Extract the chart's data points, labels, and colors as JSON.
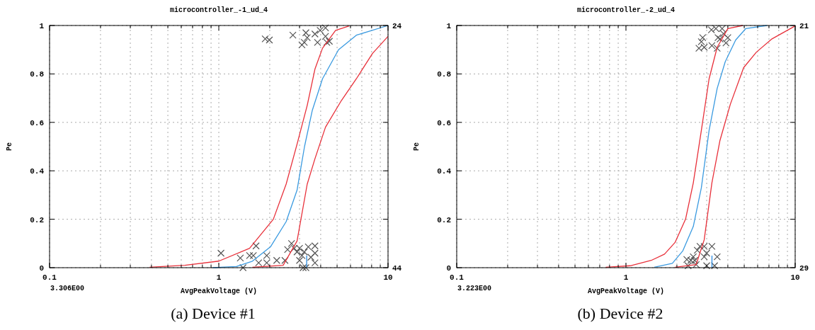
{
  "chart_data": [
    {
      "type": "line",
      "title": "microcontroller_-1_ud_4",
      "xlabel": "AvgPeakVoltage (V)",
      "ylabel": "Pe",
      "log": "x",
      "grid": true,
      "line_style": "solid",
      "xlim": [
        0.1,
        10
      ],
      "ylim": [
        0,
        1
      ],
      "xticks": [
        0.1,
        {
          "value": 0.2,
          "label": null
        },
        {
          "value": 0.3,
          "label": null
        },
        {
          "value": 0.4,
          "label": null
        },
        {
          "value": 0.5,
          "label": null
        },
        {
          "value": 0.6,
          "label": null
        },
        {
          "value": 0.7,
          "label": null
        },
        {
          "value": 0.8,
          "label": null
        },
        {
          "value": 0.9,
          "label": null
        },
        1,
        {
          "value": 2,
          "label": null
        },
        {
          "value": 3,
          "label": null
        },
        {
          "value": 4,
          "label": null
        },
        {
          "value": 5,
          "label": null
        },
        {
          "value": 6,
          "label": null
        },
        {
          "value": 7,
          "label": null
        },
        {
          "value": 8,
          "label": null
        },
        {
          "value": 9,
          "label": null
        },
        10
      ],
      "yticks": [
        0,
        0.2,
        0.4,
        0.6,
        0.8,
        1
      ],
      "annotations": [
        "3.306E00",
        "(a) Device #1",
        "24",
        "44"
      ],
      "series": [
        {
          "type": "scatter",
          "marker": "cross",
          "color": "#555555",
          "x": [
            1.03,
            1.34,
            1.39,
            1.52,
            1.6,
            1.66,
            1.72,
            1.92,
            1.92,
            2.2,
            2.46,
            2.55,
            2.69,
            2.79,
            2.9,
            3.0,
            3.1,
            3.15,
            3.27,
            3.38,
            3.5,
            3.7,
            3.7,
            3.7,
            3.0,
            3.2,
            1.88,
            1.99,
            2.74,
            3.1,
            3.2,
            3.27,
            3.33,
            3.7,
            3.83,
            3.97,
            4.27,
            4.27,
            4.35,
            4.5
          ],
          "values": [
            0.06,
            0.04,
            0,
            0.05,
            0.05,
            0.09,
            0.02,
            0.05,
            0.02,
            0.03,
            0.03,
            0.075,
            0.1,
            0.08,
            0.065,
            0.03,
            0.05,
            0,
            0,
            0.086,
            0.043,
            0.09,
            0.06,
            0.02,
            0.08,
            0.065,
            0.945,
            0.94,
            0.96,
            0.92,
            0.93,
            0.97,
            0.95,
            0.965,
            0.93,
            0.98,
            0.99,
            0.955,
            0.93,
            0.935
          ]
        },
        {
          "color": "#e8303a",
          "x": [
            0.39,
            0.63,
            1.0,
            1.52,
            2.1,
            2.5,
            2.9,
            3.33,
            3.7,
            4.1,
            4.9,
            5.9
          ],
          "values": [
            0.002,
            0.01,
            0.027,
            0.08,
            0.2,
            0.345,
            0.51,
            0.67,
            0.82,
            0.906,
            0.98,
            0.998
          ]
        },
        {
          "color": "#3a9ae0",
          "x": [
            0.92,
            1.27,
            1.58,
            2.02,
            2.5,
            2.9,
            3.21,
            3.57,
            4.1,
            5.1,
            6.5,
            10
          ],
          "values": [
            0,
            0.005,
            0.027,
            0.086,
            0.19,
            0.32,
            0.5,
            0.65,
            0.78,
            0.9,
            0.96,
            1
          ]
        },
        {
          "color": "#e8303a",
          "x": [
            1.58,
            2.4,
            2.9,
            3.33,
            3.7,
            4.27,
            5.3,
            6.5,
            8.1,
            10
          ],
          "values": [
            0.002,
            0.01,
            0.11,
            0.345,
            0.45,
            0.58,
            0.69,
            0.78,
            0.885,
            0.955
          ]
        },
        {
          "color": "#2a8ae0",
          "x": [
            3.306,
            3.306
          ],
          "values": [
            0,
            0.05
          ]
        }
      ]
    },
    {
      "type": "line",
      "title": "microcontroller_-2_ud_4",
      "xlabel": "AvgPeakVoltage (V)",
      "ylabel": "Pe",
      "log": "x",
      "grid": true,
      "line_style": "solid",
      "xlim": [
        0.1,
        10
      ],
      "ylim": [
        0,
        1
      ],
      "xticks": [
        0.1,
        {
          "value": 0.2,
          "label": null
        },
        {
          "value": 0.3,
          "label": null
        },
        {
          "value": 0.4,
          "label": null
        },
        {
          "value": 0.5,
          "label": null
        },
        {
          "value": 0.6,
          "label": null
        },
        {
          "value": 0.7,
          "label": null
        },
        {
          "value": 0.8,
          "label": null
        },
        {
          "value": 0.9,
          "label": null
        },
        1,
        {
          "value": 2,
          "label": null
        },
        {
          "value": 3,
          "label": null
        },
        {
          "value": 4,
          "label": null
        },
        {
          "value": 5,
          "label": null
        },
        {
          "value": 6,
          "label": null
        },
        {
          "value": 7,
          "label": null
        },
        {
          "value": 8,
          "label": null
        },
        {
          "value": 9,
          "label": null
        },
        10
      ],
      "yticks": [
        0,
        0.2,
        0.4,
        0.6,
        0.8,
        1
      ],
      "annotations": [
        "3.223E00",
        "(b) Device #2",
        "21",
        "29"
      ],
      "series": [
        {
          "type": "scatter",
          "marker": "cross",
          "color": "#555555",
          "x": [
            2.29,
            2.33,
            2.42,
            2.5,
            2.55,
            2.6,
            2.64,
            2.74,
            2.9,
            2.9,
            3.0,
            3.0,
            3.22,
            3.34,
            3.46,
            2.7,
            2.79,
            2.9,
            2.84,
            3.2,
            3.22,
            3.4,
            3.46,
            3.5,
            3.7,
            3.6,
            3.77,
            3.9,
            4.0
          ],
          "values": [
            0.034,
            0.008,
            0.03,
            0.045,
            0.03,
            0.013,
            0.072,
            0.088,
            0.045,
            0.088,
            0.008,
            0.06,
            0.088,
            0.008,
            0.045,
            0.906,
            0.933,
            0.91,
            0.95,
            0.982,
            0.917,
            0.987,
            0.906,
            0.95,
            0.987,
            0.944,
            0.966,
            0.928,
            0.95
          ]
        },
        {
          "color": "#e8303a",
          "x": [
            0.76,
            1.06,
            1.41,
            1.69,
            1.95,
            2.25,
            2.5,
            2.79,
            3.1,
            3.46,
            4.0,
            4.9
          ],
          "values": [
            0.002,
            0.008,
            0.03,
            0.056,
            0.104,
            0.2,
            0.35,
            0.567,
            0.78,
            0.91,
            0.987,
            1
          ]
        },
        {
          "color": "#3a9ae0",
          "x": [
            1.47,
            1.88,
            2.17,
            2.5,
            2.79,
            3.1,
            3.46,
            3.86,
            4.45,
            5.1,
            6.8
          ],
          "values": [
            0.002,
            0.018,
            0.07,
            0.17,
            0.33,
            0.567,
            0.74,
            0.85,
            0.94,
            0.987,
            1
          ]
        },
        {
          "color": "#e8303a",
          "x": [
            1.95,
            2.6,
            2.9,
            3.22,
            3.59,
            4.14,
            4.96,
            5.9,
            7.3,
            10
          ],
          "values": [
            0.002,
            0.013,
            0.115,
            0.35,
            0.524,
            0.675,
            0.826,
            0.89,
            0.945,
            0.998
          ]
        },
        {
          "color": "#2a8ae0",
          "x": [
            3.223,
            3.223
          ],
          "values": [
            0,
            0.05
          ]
        }
      ]
    }
  ]
}
